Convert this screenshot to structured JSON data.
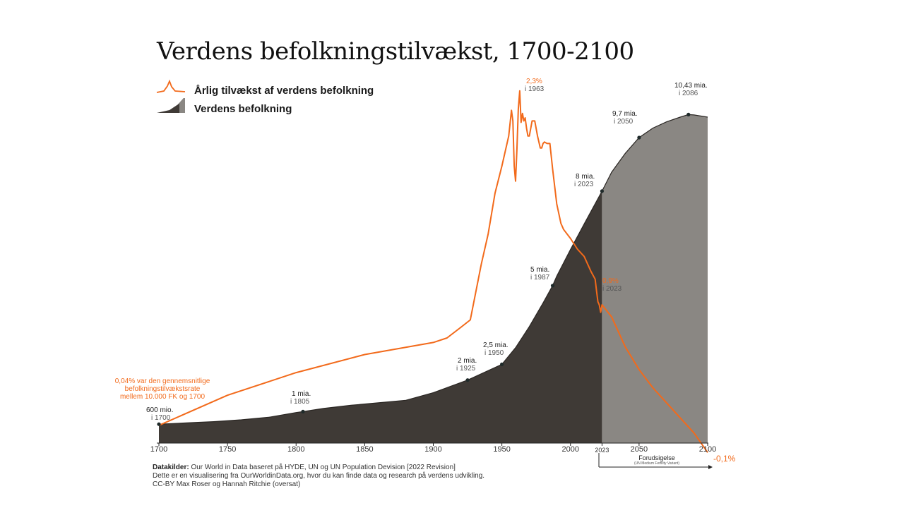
{
  "chart_data": {
    "type": "area",
    "title": "Verdens befolkningstilvækst, 1700-2100",
    "xlabel": "",
    "ylabel": "",
    "xlim": [
      1700,
      2100
    ],
    "x_ticks": [
      "1700",
      "1750",
      "1800",
      "1850",
      "1900",
      "1950",
      "2000",
      "2023",
      "2050",
      "2100"
    ],
    "legend": {
      "growth": "Årlig tilvækst af verdens befolkning",
      "population": "Verdens befolkning"
    },
    "population_billion": {
      "ylim": [
        0,
        11
      ],
      "x": [
        1700,
        1720,
        1740,
        1760,
        1780,
        1800,
        1805,
        1820,
        1840,
        1860,
        1880,
        1900,
        1910,
        1925,
        1940,
        1950,
        1960,
        1970,
        1980,
        1987,
        1990,
        2000,
        2010,
        2023,
        2030,
        2040,
        2050,
        2060,
        2070,
        2080,
        2086,
        2090,
        2100
      ],
      "values": [
        0.6,
        0.64,
        0.68,
        0.74,
        0.82,
        0.97,
        1.0,
        1.1,
        1.2,
        1.28,
        1.36,
        1.6,
        1.76,
        2.0,
        2.3,
        2.5,
        3.03,
        3.7,
        4.45,
        5.0,
        5.3,
        6.15,
        6.96,
        8.0,
        8.6,
        9.2,
        9.7,
        10.0,
        10.2,
        10.35,
        10.43,
        10.42,
        10.35
      ]
    },
    "growth_rate_percent": {
      "ylim": [
        -0.15,
        2.35
      ],
      "x": [
        1700,
        1750,
        1800,
        1850,
        1900,
        1910,
        1920,
        1927,
        1935,
        1940,
        1945,
        1950,
        1955,
        1957,
        1958,
        1959,
        1960,
        1961,
        1962,
        1963,
        1964,
        1965,
        1966,
        1967,
        1968,
        1969,
        1970,
        1972,
        1974,
        1976,
        1978,
        1979,
        1980,
        1981,
        1983,
        1985,
        1987,
        1990,
        1993,
        1995,
        2000,
        2005,
        2010,
        2015,
        2018,
        2019,
        2020,
        2021,
        2022,
        2023,
        2030,
        2040,
        2050,
        2060,
        2070,
        2080,
        2090,
        2100
      ],
      "values": [
        0.08,
        0.28,
        0.43,
        0.55,
        0.63,
        0.66,
        0.73,
        0.78,
        1.15,
        1.35,
        1.62,
        1.8,
        2.0,
        2.17,
        2.1,
        1.8,
        1.7,
        1.92,
        2.18,
        2.3,
        2.09,
        2.15,
        2.1,
        2.12,
        2.05,
        2.0,
        2.0,
        2.1,
        2.1,
        2.0,
        1.92,
        1.92,
        1.95,
        1.96,
        1.95,
        1.95,
        1.78,
        1.55,
        1.42,
        1.38,
        1.32,
        1.25,
        1.2,
        1.1,
        1.05,
        0.97,
        0.9,
        0.88,
        0.83,
        0.88,
        0.8,
        0.6,
        0.45,
        0.33,
        0.23,
        0.13,
        0.03,
        -0.1
      ]
    },
    "annotations": {
      "p1700": {
        "value": "600 mio.",
        "when": "i 1700"
      },
      "p1805": {
        "value": "1 mia.",
        "when": "i 1805"
      },
      "p1925": {
        "value": "2 mia.",
        "when": "i 1925"
      },
      "p1950": {
        "value": "2,5 mia.",
        "when": "i 1950"
      },
      "p1987": {
        "value": "5 mia.",
        "when": "i 1987"
      },
      "p2023": {
        "value": "8 mia.",
        "when": "i 2023"
      },
      "p2050": {
        "value": "9,7 mia.",
        "when": "i 2050"
      },
      "p2086": {
        "value": "10,43 mia.",
        "when": "i 2086"
      },
      "g1963": {
        "value": "2,3%",
        "when": "i 1963"
      },
      "g2023": {
        "value": "0,9%",
        "when": "i 2023"
      },
      "g2100": {
        "value": "-0,1%"
      },
      "note": [
        "0,04% var den gennemsnitlige",
        "befolkningstilvækstsrate",
        "mellem 10.000 FK og 1700"
      ]
    },
    "forecast": {
      "label": "Forudsigelse",
      "sub": "(UN Medium Fertility Variant)"
    }
  },
  "sources": {
    "bold": "Datakilder:",
    "line1": " Our World in Data baseret på HYDE, UN og UN Population Devision [2022 Revision]",
    "line2": "Dette er en visualisering fra OurWorldinData.org, hvor du kan finde data og research på verdens udvikling.",
    "line3": "CC-BY Max Roser og Hannah Ritchie (oversat)"
  },
  "colors": {
    "orange": "#f26a1b",
    "dark": "#3f3a36",
    "forecast_gray": "#8a8783",
    "axis": "#222222"
  }
}
